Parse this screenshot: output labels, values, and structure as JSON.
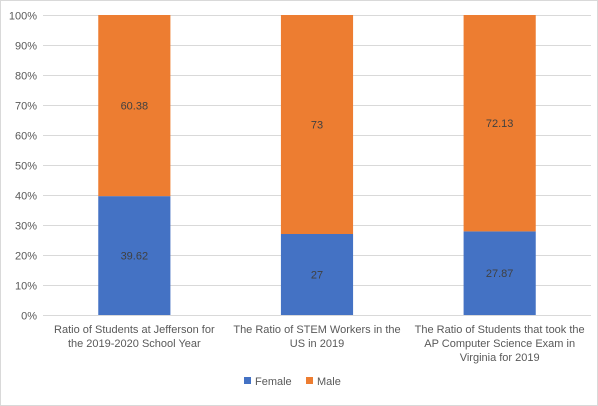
{
  "chart_data": {
    "type": "bar",
    "stacked": true,
    "percent_stacked": true,
    "categories": [
      [
        "Ratio of Students at Jefferson for",
        "the 2019-2020 School Year"
      ],
      [
        "The Ratio of STEM Workers in the",
        "US in 2019"
      ],
      [
        "The Ratio of Students that took the",
        "AP Computer Science Exam in",
        "Virginia for 2019"
      ]
    ],
    "series": [
      {
        "name": "Female",
        "values": [
          39.62,
          27,
          27.87
        ],
        "color": "#4472c4"
      },
      {
        "name": "Male",
        "values": [
          60.38,
          73,
          72.13
        ],
        "color": "#ed7d31"
      }
    ],
    "ylim": [
      0,
      100
    ],
    "y_ticks": [
      "0%",
      "10%",
      "20%",
      "30%",
      "40%",
      "50%",
      "60%",
      "70%",
      "80%",
      "90%",
      "100%"
    ],
    "grid": true,
    "legend_position": "bottom"
  }
}
